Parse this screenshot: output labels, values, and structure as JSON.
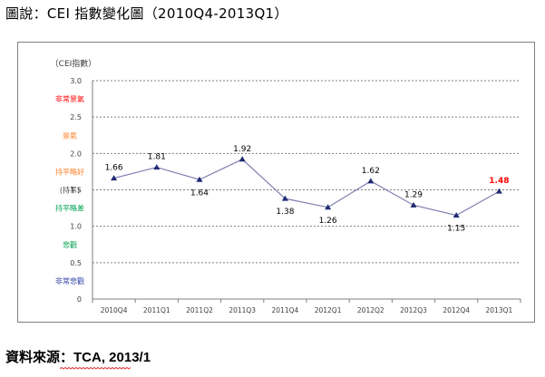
{
  "page": {
    "title": "圖說：CEI 指數變化圖（2010Q4-2013Q1）",
    "source_label": "資料來源：",
    "source_value": "TCA, 2013/1"
  },
  "colors": {
    "line": "#7f7fb2",
    "marker": "#1f2a70",
    "last_label": "#ff0000",
    "very_boom": "#ff0000",
    "boom": "#ff7f27",
    "steady_good": "#ff7f27",
    "steady_bad": "#00a050",
    "gloom": "#00a050",
    "very_gloom": "#2f3fa8",
    "underline": "#e03030"
  },
  "chart_data": {
    "type": "line",
    "ylabel": "（CEI指數）",
    "categories": [
      "2010Q4",
      "2011Q1",
      "2011Q2",
      "2011Q3",
      "2011Q4",
      "2012Q1",
      "2012Q2",
      "2012Q3",
      "2012Q4",
      "2013Q1"
    ],
    "values": [
      1.66,
      1.81,
      1.64,
      1.92,
      1.38,
      1.26,
      1.62,
      1.29,
      1.15,
      1.48
    ],
    "value_labels": [
      "1.66",
      "1.81",
      "1.64",
      "1.92",
      "1.38",
      "1.26",
      "1.62",
      "1.29",
      "1.15",
      "1.48"
    ],
    "ylim": [
      0,
      3.0
    ],
    "yticks": [
      "0",
      "0.5",
      "1.0",
      "1.5",
      "2.0",
      "2.5",
      "3.0"
    ],
    "ytick_values": [
      0,
      0.5,
      1.0,
      1.5,
      2.0,
      2.5,
      3.0
    ],
    "grid": true,
    "zones": [
      {
        "label": "非常景氣",
        "y": 2.75,
        "color_key": "very_boom"
      },
      {
        "label": "景氣",
        "y": 2.25,
        "color_key": "boom"
      },
      {
        "label": "持平略好",
        "y": 1.75,
        "color_key": "steady_good"
      },
      {
        "label": "(持平)",
        "y": 1.5,
        "color_key": "neutral"
      },
      {
        "label": "持平略差",
        "y": 1.25,
        "color_key": "steady_bad"
      },
      {
        "label": "悲觀",
        "y": 0.75,
        "color_key": "gloom"
      },
      {
        "label": "非常悲觀",
        "y": 0.25,
        "color_key": "very_gloom"
      }
    ]
  }
}
